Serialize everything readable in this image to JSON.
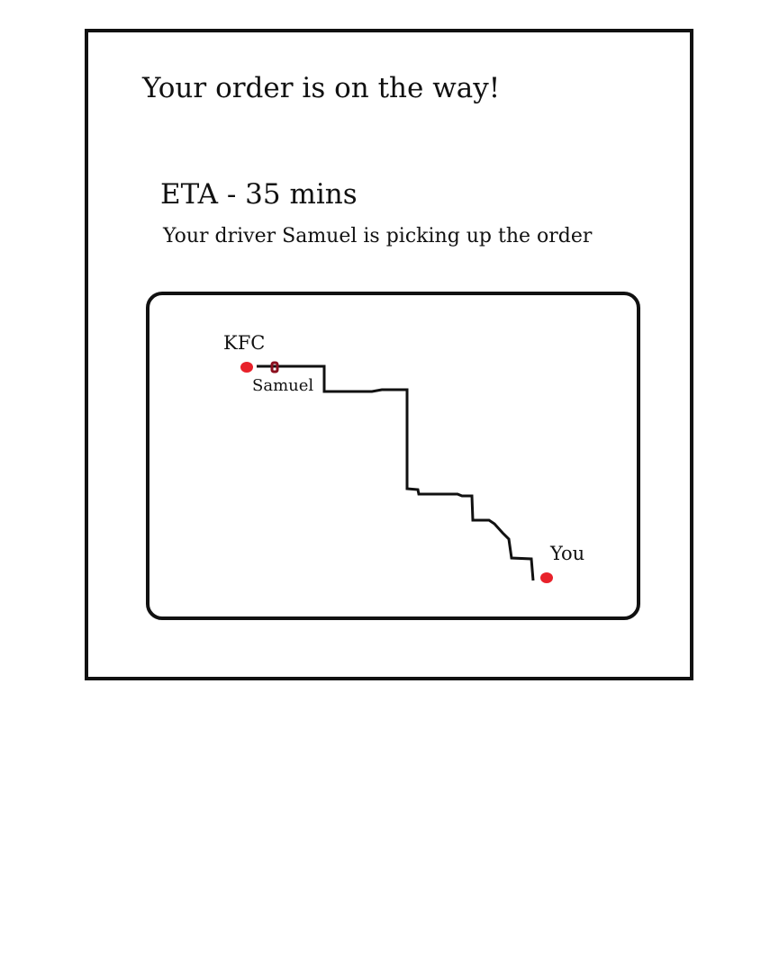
{
  "header": {
    "title": "Your order is on the way!"
  },
  "status": {
    "eta": "ETA - 35 mins",
    "driver_message": "Your driver Samuel is picking up the order"
  },
  "map": {
    "origin_label": "KFC",
    "driver_label": "Samuel",
    "destination_label": "You",
    "colors": {
      "origin_marker": "#e8212a",
      "destination_marker": "#e8212a",
      "driver_marker": "#8b0f1e",
      "route": "#111111"
    }
  }
}
